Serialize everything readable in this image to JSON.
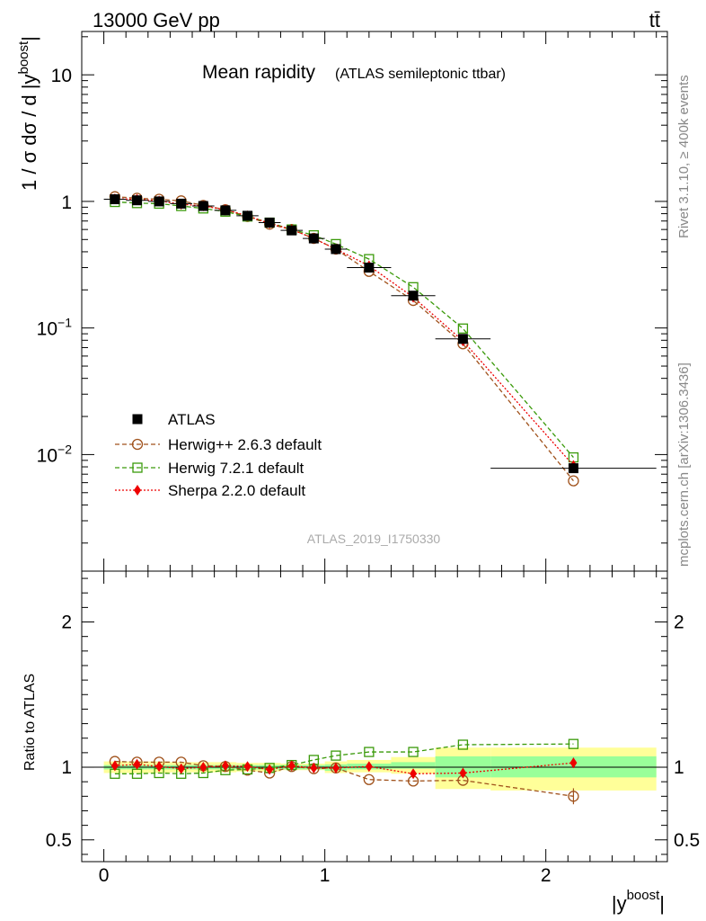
{
  "header": {
    "energy_label": "13000 GeV pp",
    "process_label": "tt̄"
  },
  "side_labels": {
    "rivet": "Rivet 3.1.10, ≥ 400k events",
    "mcplots": "mcplots.cern.ch [arXiv:1306.3436]"
  },
  "colors": {
    "atlas": "#000000",
    "herwigpp": "#a0521c",
    "herwig7": "#3a9a0a",
    "sherpa": "#ee0000",
    "band_inner": "#99ff99",
    "band_outer": "#ffff99"
  },
  "chart_data": [
    {
      "type": "scatter",
      "panel": "main",
      "title": "Mean rapidity",
      "subtitle": "(ATLAS semileptonic ttbar)",
      "analysis_id": "ATLAS_2019_I1750330",
      "xlabel": "|y",
      "xlabel_sup": "boost",
      "xlabel_tail": "|",
      "ylabel": "1 / σ dσ / d |y",
      "ylabel_sup": "boost",
      "ylabel_tail": "|",
      "yscale": "log",
      "xlim": [
        -0.1,
        2.55
      ],
      "ylim": [
        0.0012,
        22
      ],
      "y_ticks": [
        {
          "value": 10,
          "label": "10",
          "sup": ""
        },
        {
          "value": 1,
          "label": "1",
          "sup": ""
        },
        {
          "value": 0.1,
          "label": "10",
          "sup": "−1"
        },
        {
          "value": 0.01,
          "label": "10",
          "sup": "−2"
        }
      ],
      "legend_position": "bottom-left",
      "series": [
        {
          "name": "ATLAS",
          "key": "atlas",
          "style": "data",
          "x": [
            0.05,
            0.15,
            0.25,
            0.35,
            0.45,
            0.55,
            0.65,
            0.75,
            0.85,
            0.95,
            1.05,
            1.2,
            1.4,
            1.625,
            2.125
          ],
          "values": [
            1.04,
            1.02,
            1.0,
            0.96,
            0.92,
            0.85,
            0.77,
            0.68,
            0.59,
            0.51,
            0.42,
            0.3,
            0.18,
            0.082,
            0.0078
          ],
          "xerr": [
            0.05,
            0.05,
            0.05,
            0.05,
            0.05,
            0.05,
            0.05,
            0.05,
            0.05,
            0.05,
            0.05,
            0.1,
            0.1,
            0.125,
            0.375
          ]
        },
        {
          "name": "Herwig++ 2.6.3 default",
          "key": "herwigpp",
          "style": "open-circle-dashed",
          "x": [
            0.05,
            0.15,
            0.25,
            0.35,
            0.45,
            0.55,
            0.65,
            0.75,
            0.85,
            0.95,
            1.05,
            1.2,
            1.4,
            1.625,
            2.125
          ],
          "values": [
            1.09,
            1.06,
            1.04,
            1.01,
            0.93,
            0.86,
            0.76,
            0.66,
            0.6,
            0.51,
            0.42,
            0.28,
            0.165,
            0.075,
            0.0062
          ]
        },
        {
          "name": "Herwig 7.2.1 default",
          "key": "herwig7",
          "style": "open-square-dashed",
          "x": [
            0.05,
            0.15,
            0.25,
            0.35,
            0.45,
            0.55,
            0.65,
            0.75,
            0.85,
            0.95,
            1.05,
            1.2,
            1.4,
            1.625,
            2.125
          ],
          "values": [
            0.99,
            0.97,
            0.96,
            0.92,
            0.88,
            0.83,
            0.76,
            0.68,
            0.6,
            0.54,
            0.46,
            0.35,
            0.21,
            0.099,
            0.0095
          ]
        },
        {
          "name": "Sherpa 2.2.0 default",
          "key": "sherpa",
          "style": "diamond-dotted",
          "x": [
            0.05,
            0.15,
            0.25,
            0.35,
            0.45,
            0.55,
            0.65,
            0.75,
            0.85,
            0.95,
            1.05,
            1.2,
            1.4,
            1.625,
            2.125
          ],
          "values": [
            1.05,
            1.04,
            1.01,
            0.95,
            0.92,
            0.86,
            0.77,
            0.67,
            0.6,
            0.51,
            0.42,
            0.31,
            0.175,
            0.079,
            0.0082
          ]
        }
      ]
    },
    {
      "type": "scatter",
      "panel": "ratio",
      "ylabel": "Ratio to ATLAS",
      "yscale": "linear",
      "xlim": [
        -0.1,
        2.55
      ],
      "ylim": [
        0.35,
        2.35
      ],
      "x_ticks": [
        0,
        1,
        2
      ],
      "x_tick_labels": [
        "0",
        "1",
        "2"
      ],
      "y_ticks": [
        0.5,
        1,
        2
      ],
      "y_tick_labels": [
        "0.5",
        "1",
        "2"
      ],
      "band_edges": [
        0,
        0.1,
        0.2,
        0.3,
        0.4,
        0.5,
        0.6,
        0.7,
        0.8,
        0.9,
        1.0,
        1.1,
        1.3,
        1.5,
        1.75,
        2.5
      ],
      "band_inner": [
        [
          0.985,
          1.015
        ],
        [
          0.985,
          1.015
        ],
        [
          0.985,
          1.015
        ],
        [
          0.985,
          1.015
        ],
        [
          0.985,
          1.015
        ],
        [
          0.985,
          1.015
        ],
        [
          0.985,
          1.015
        ],
        [
          0.985,
          1.015
        ],
        [
          0.985,
          1.015
        ],
        [
          0.985,
          1.015
        ],
        [
          0.975,
          1.02
        ],
        [
          0.985,
          1.025
        ],
        [
          0.99,
          1.035
        ],
        [
          0.93,
          1.075
        ],
        [
          0.93,
          1.075
        ]
      ],
      "band_outer": [
        [
          0.96,
          1.04
        ],
        [
          0.96,
          1.04
        ],
        [
          0.96,
          1.04
        ],
        [
          0.965,
          1.035
        ],
        [
          0.965,
          1.035
        ],
        [
          0.965,
          1.035
        ],
        [
          0.97,
          1.03
        ],
        [
          0.97,
          1.03
        ],
        [
          0.98,
          1.025
        ],
        [
          0.98,
          1.025
        ],
        [
          0.96,
          1.04
        ],
        [
          0.965,
          1.05
        ],
        [
          0.955,
          1.07
        ],
        [
          0.85,
          1.135
        ],
        [
          0.84,
          1.135
        ]
      ],
      "series": [
        {
          "name": "Herwig++ 2.6.3 default",
          "key": "herwigpp",
          "style": "open-circle-dashed",
          "x": [
            0.05,
            0.15,
            0.25,
            0.35,
            0.45,
            0.55,
            0.65,
            0.75,
            0.85,
            0.95,
            1.05,
            1.2,
            1.4,
            1.625,
            2.125
          ],
          "values": [
            1.04,
            1.035,
            1.035,
            1.035,
            1.01,
            1.005,
            0.98,
            0.96,
            1.005,
            0.99,
            0.995,
            0.915,
            0.905,
            0.91,
            0.8
          ],
          "err": [
            0,
            0,
            0,
            0,
            0,
            0,
            0,
            0,
            0,
            0,
            0,
            0,
            0,
            0,
            0.055
          ]
        },
        {
          "name": "Herwig 7.2.1 default",
          "key": "herwig7",
          "style": "open-square-dashed",
          "x": [
            0.05,
            0.15,
            0.25,
            0.35,
            0.45,
            0.55,
            0.65,
            0.75,
            0.85,
            0.95,
            1.05,
            1.2,
            1.4,
            1.625,
            2.125
          ],
          "values": [
            0.955,
            0.955,
            0.96,
            0.955,
            0.96,
            0.98,
            0.985,
            0.995,
            1.015,
            1.05,
            1.08,
            1.105,
            1.105,
            1.155,
            1.16
          ],
          "err": [
            0,
            0,
            0,
            0,
            0,
            0,
            0,
            0,
            0,
            0,
            0,
            0,
            0,
            0,
            0
          ]
        },
        {
          "name": "Sherpa 2.2.0 default",
          "key": "sherpa",
          "style": "diamond-dotted",
          "x": [
            0.05,
            0.15,
            0.25,
            0.35,
            0.45,
            0.55,
            0.65,
            0.75,
            0.85,
            0.95,
            1.05,
            1.2,
            1.4,
            1.625,
            2.125
          ],
          "values": [
            1.01,
            1.02,
            1.005,
            0.99,
            1.0,
            1.01,
            1.005,
            0.985,
            1.01,
            0.995,
            0.995,
            1.005,
            0.955,
            0.96,
            1.03
          ],
          "err": [
            0,
            0,
            0,
            0,
            0,
            0,
            0,
            0,
            0,
            0,
            0,
            0,
            0,
            0,
            0.035
          ]
        }
      ]
    }
  ]
}
